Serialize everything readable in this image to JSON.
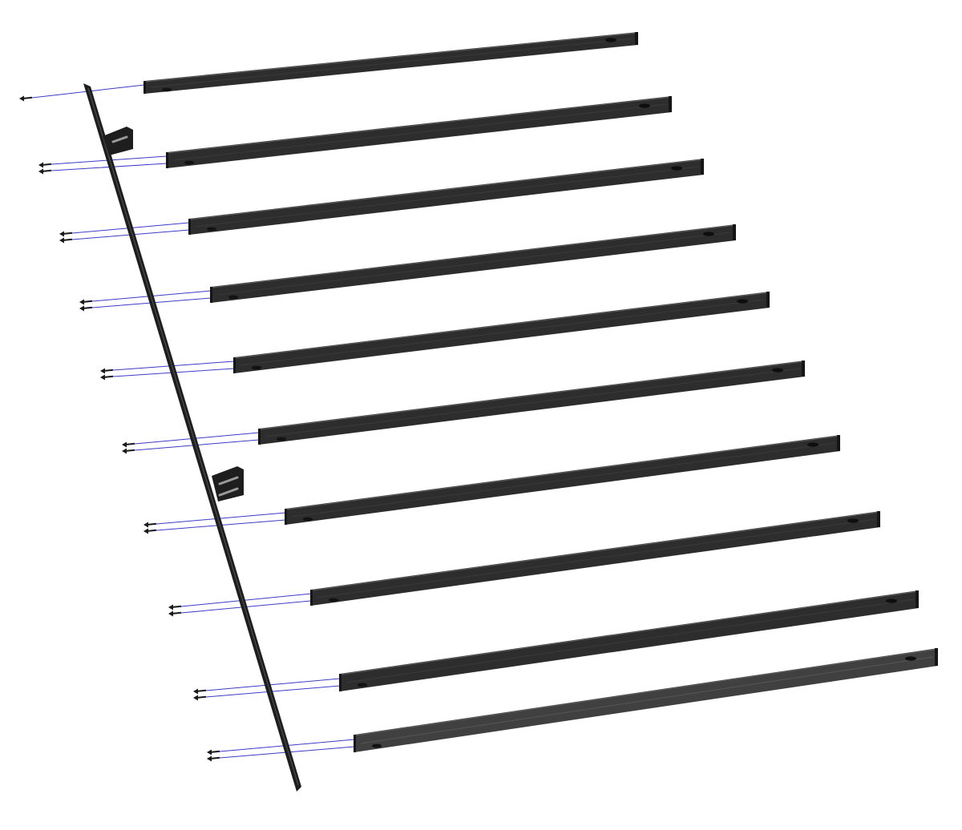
{
  "diagram": {
    "type": "exploded-assembly",
    "component_counts": {
      "mounting_rail": 1,
      "rail_tabs": 2,
      "extrusions": 10,
      "screws": 19
    },
    "colors": {
      "background": "#ffffff",
      "extrusion": "#2d2d2d",
      "extrusion_last": "#404040",
      "rail": "#1e1e1e",
      "screw": "#1a1a1a",
      "assembly_line": "#3c3cc8"
    }
  }
}
